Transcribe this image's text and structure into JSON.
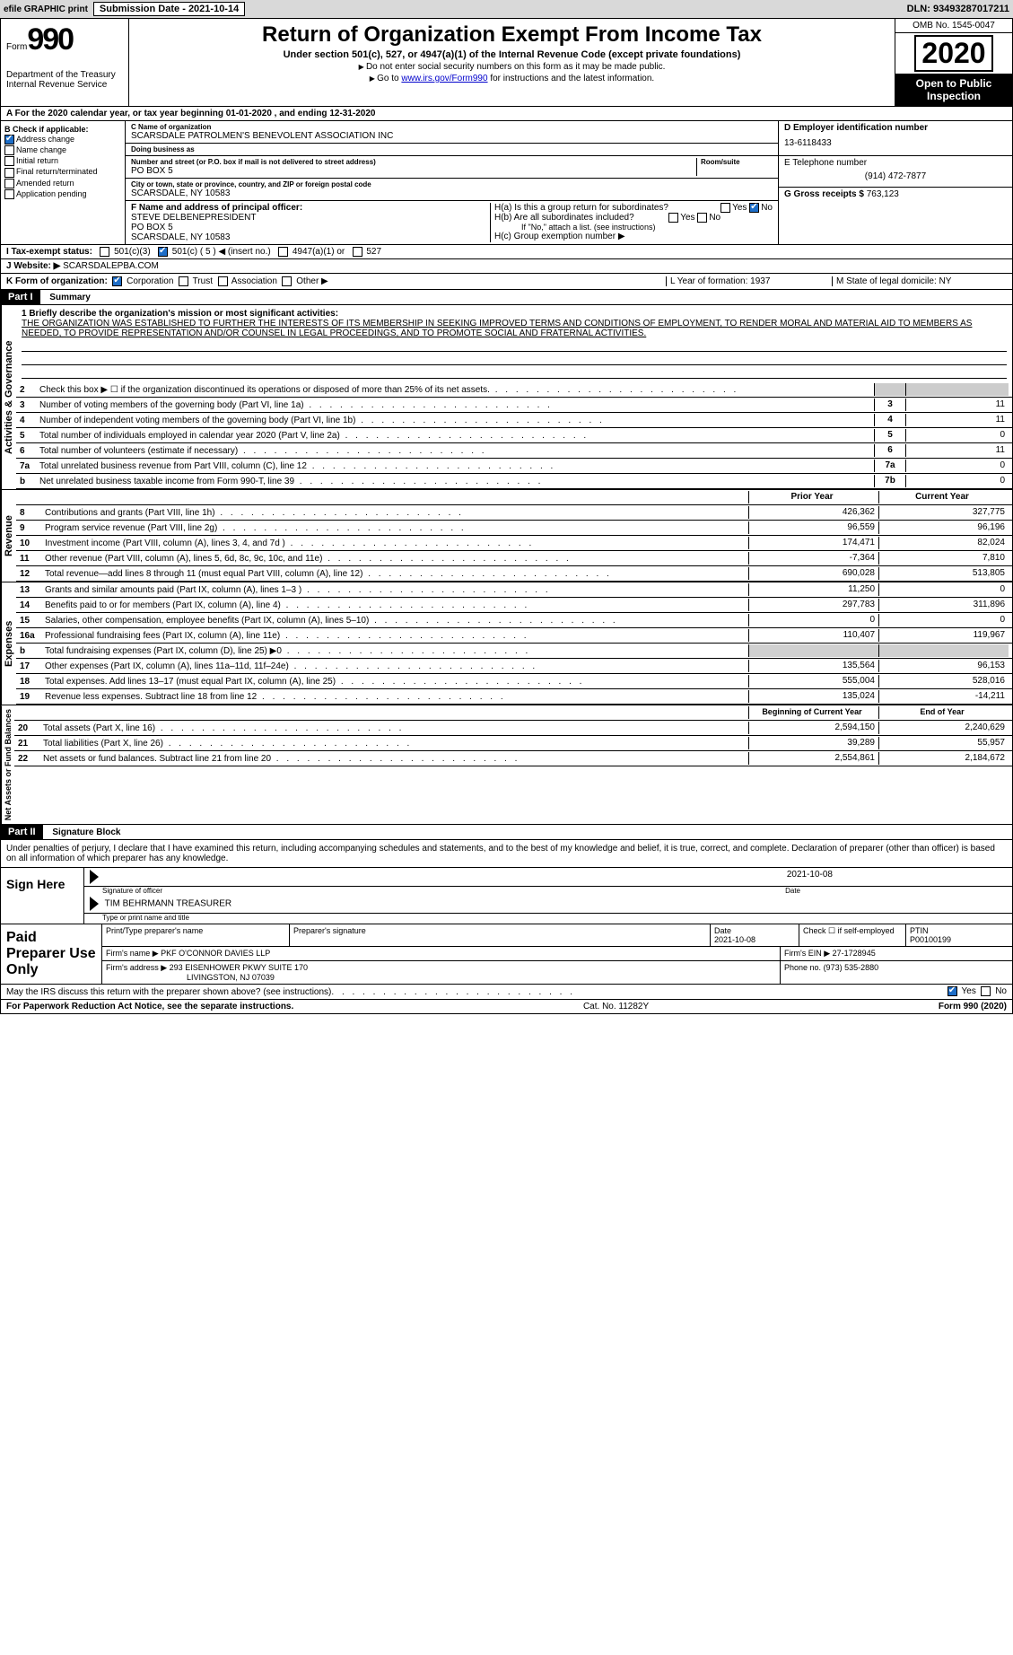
{
  "top": {
    "efile": "efile GRAPHIC print",
    "subdate_label": "Submission Date - ",
    "subdate": "2021-10-14",
    "dln": "DLN: 93493287017211"
  },
  "header": {
    "form_word": "Form",
    "form_num": "990",
    "dept": "Department of the Treasury\nInternal Revenue Service",
    "title": "Return of Organization Exempt From Income Tax",
    "subtitle": "Under section 501(c), 527, or 4947(a)(1) of the Internal Revenue Code (except private foundations)",
    "note1": "Do not enter social security numbers on this form as it may be made public.",
    "note2_pre": "Go to ",
    "note2_link": "www.irs.gov/Form990",
    "note2_post": " for instructions and the latest information.",
    "omb": "OMB No. 1545-0047",
    "year": "2020",
    "open": "Open to Public Inspection"
  },
  "A": {
    "text": "A For the 2020 calendar year, or tax year beginning 01-01-2020   , and ending 12-31-2020"
  },
  "B": {
    "label": "B Check if applicable:",
    "items": [
      "Address change",
      "Name change",
      "Initial return",
      "Final return/terminated",
      "Amended return",
      "Application pending"
    ]
  },
  "C": {
    "name_label": "C Name of organization",
    "name": "SCARSDALE PATROLMEN'S BENEVOLENT ASSOCIATION INC",
    "dba_label": "Doing business as",
    "addr_label": "Number and street (or P.O. box if mail is not delivered to street address)",
    "room_label": "Room/suite",
    "addr": "PO BOX 5",
    "city_label": "City or town, state or province, country, and ZIP or foreign postal code",
    "city": "SCARSDALE, NY  10583"
  },
  "D": {
    "ein_label": "D Employer identification number",
    "ein": "13-6118433",
    "tel_label": "E Telephone number",
    "tel": "(914) 472-7877",
    "gross_label": "G Gross receipts $",
    "gross": "763,123"
  },
  "F": {
    "label": "F Name and address of principal officer:",
    "name": "STEVE DELBENEPRESIDENT",
    "addr1": "PO BOX 5",
    "addr2": "SCARSDALE, NY  10583"
  },
  "H": {
    "a": "H(a)  Is this a group return for subordinates?",
    "b": "H(b)  Are all subordinates included?",
    "b_note": "If \"No,\" attach a list. (see instructions)",
    "c": "H(c)  Group exemption number ▶"
  },
  "I": {
    "label": "I   Tax-exempt status:",
    "c3": "501(c)(3)",
    "c": "501(c) ( 5 ) ◀ (insert no.)",
    "a": "4947(a)(1) or",
    "five": "527"
  },
  "J": {
    "label": "J   Website: ▶",
    "value": " SCARSDALEPBA.COM"
  },
  "K": {
    "label": "K Form of organization:",
    "corp": "Corporation",
    "trust": "Trust",
    "assoc": "Association",
    "other": "Other ▶",
    "L": "L Year of formation: 1937",
    "M": "M State of legal domicile: NY"
  },
  "part1": {
    "label": "Part I",
    "title": "Summary"
  },
  "mission": {
    "line1": "1  Briefly describe the organization's mission or most significant activities:",
    "text": "THE ORGANIZATION WAS ESTABLISHED TO FURTHER THE INTERESTS OF ITS MEMBERSHIP IN SEEKING IMPROVED TERMS AND CONDITIONS OF EMPLOYMENT, TO RENDER MORAL AND MATERIAL AID TO MEMBERS AS NEEDED, TO PROVIDE REPRESENTATION AND/OR COUNSEL IN LEGAL PROCEEDINGS, AND TO PROMOTE SOCIAL AND FRATERNAL ACTIVITIES."
  },
  "gov": [
    {
      "n": "2",
      "t": "Check this box ▶ ☐ if the organization discontinued its operations or disposed of more than 25% of its net assets.",
      "b": "",
      "v": ""
    },
    {
      "n": "3",
      "t": "Number of voting members of the governing body (Part VI, line 1a)",
      "b": "3",
      "v": "11"
    },
    {
      "n": "4",
      "t": "Number of independent voting members of the governing body (Part VI, line 1b)",
      "b": "4",
      "v": "11"
    },
    {
      "n": "5",
      "t": "Total number of individuals employed in calendar year 2020 (Part V, line 2a)",
      "b": "5",
      "v": "0"
    },
    {
      "n": "6",
      "t": "Total number of volunteers (estimate if necessary)",
      "b": "6",
      "v": "11"
    },
    {
      "n": "7a",
      "t": "Total unrelated business revenue from Part VIII, column (C), line 12",
      "b": "7a",
      "v": "0"
    },
    {
      "n": "b",
      "t": "Net unrelated business taxable income from Form 990-T, line 39",
      "b": "7b",
      "v": "0"
    }
  ],
  "colheads": {
    "prior": "Prior Year",
    "current": "Current Year"
  },
  "revenue": [
    {
      "n": "8",
      "t": "Contributions and grants (Part VIII, line 1h)",
      "p": "426,362",
      "c": "327,775"
    },
    {
      "n": "9",
      "t": "Program service revenue (Part VIII, line 2g)",
      "p": "96,559",
      "c": "96,196"
    },
    {
      "n": "10",
      "t": "Investment income (Part VIII, column (A), lines 3, 4, and 7d )",
      "p": "174,471",
      "c": "82,024"
    },
    {
      "n": "11",
      "t": "Other revenue (Part VIII, column (A), lines 5, 6d, 8c, 9c, 10c, and 11e)",
      "p": "-7,364",
      "c": "7,810"
    },
    {
      "n": "12",
      "t": "Total revenue—add lines 8 through 11 (must equal Part VIII, column (A), line 12)",
      "p": "690,028",
      "c": "513,805"
    }
  ],
  "expenses": [
    {
      "n": "13",
      "t": "Grants and similar amounts paid (Part IX, column (A), lines 1–3 )",
      "p": "11,250",
      "c": "0"
    },
    {
      "n": "14",
      "t": "Benefits paid to or for members (Part IX, column (A), line 4)",
      "p": "297,783",
      "c": "311,896"
    },
    {
      "n": "15",
      "t": "Salaries, other compensation, employee benefits (Part IX, column (A), lines 5–10)",
      "p": "0",
      "c": "0"
    },
    {
      "n": "16a",
      "t": "Professional fundraising fees (Part IX, column (A), line 11e)",
      "p": "110,407",
      "c": "119,967"
    },
    {
      "n": "b",
      "t": "Total fundraising expenses (Part IX, column (D), line 25) ▶0",
      "p": "",
      "c": ""
    },
    {
      "n": "17",
      "t": "Other expenses (Part IX, column (A), lines 11a–11d, 11f–24e)",
      "p": "135,564",
      "c": "96,153"
    },
    {
      "n": "18",
      "t": "Total expenses. Add lines 13–17 (must equal Part IX, column (A), line 25)",
      "p": "555,004",
      "c": "528,016"
    },
    {
      "n": "19",
      "t": "Revenue less expenses. Subtract line 18 from line 12",
      "p": "135,024",
      "c": "-14,211"
    }
  ],
  "netheads": {
    "begin": "Beginning of Current Year",
    "end": "End of Year"
  },
  "net": [
    {
      "n": "20",
      "t": "Total assets (Part X, line 16)",
      "p": "2,594,150",
      "c": "2,240,629"
    },
    {
      "n": "21",
      "t": "Total liabilities (Part X, line 26)",
      "p": "39,289",
      "c": "55,957"
    },
    {
      "n": "22",
      "t": "Net assets or fund balances. Subtract line 21 from line 20",
      "p": "2,554,861",
      "c": "2,184,672"
    }
  ],
  "part2": {
    "label": "Part II",
    "title": "Signature Block"
  },
  "sig": {
    "penalties": "Under penalties of perjury, I declare that I have examined this return, including accompanying schedules and statements, and to the best of my knowledge and belief, it is true, correct, and complete. Declaration of preparer (other than officer) is based on all information of which preparer has any knowledge.",
    "sign_here": "Sign Here",
    "sig_officer": "Signature of officer",
    "date": "2021-10-08",
    "date_label": "Date",
    "name": "TIM BEHRMANN  TREASURER",
    "name_label": "Type or print name and title"
  },
  "paid": {
    "label": "Paid Preparer Use Only",
    "h1": "Print/Type preparer's name",
    "h2": "Preparer's signature",
    "h3": "Date",
    "h3v": "2021-10-08",
    "h4": "Check ☐ if self-employed",
    "h5": "PTIN",
    "h5v": "P00100199",
    "firm_name_label": "Firm's name    ▶",
    "firm_name": "PKF O'CONNOR DAVIES LLP",
    "firm_ein_label": "Firm's EIN ▶",
    "firm_ein": "27-1728945",
    "firm_addr_label": "Firm's address ▶",
    "firm_addr": "293 EISENHOWER PKWY SUITE 170",
    "firm_addr2": "LIVINGSTON, NJ  07039",
    "phone_label": "Phone no.",
    "phone": "(973) 535-2880"
  },
  "discuss": "May the IRS discuss this return with the preparer shown above? (see instructions)",
  "yesno": {
    "yes": "Yes",
    "no": "No"
  },
  "footer": {
    "pra": "For Paperwork Reduction Act Notice, see the separate instructions.",
    "cat": "Cat. No. 11282Y",
    "form": "Form 990 (2020)"
  },
  "vtabs": {
    "gov": "Activities & Governance",
    "rev": "Revenue",
    "exp": "Expenses",
    "net": "Net Assets or Fund Balances"
  }
}
